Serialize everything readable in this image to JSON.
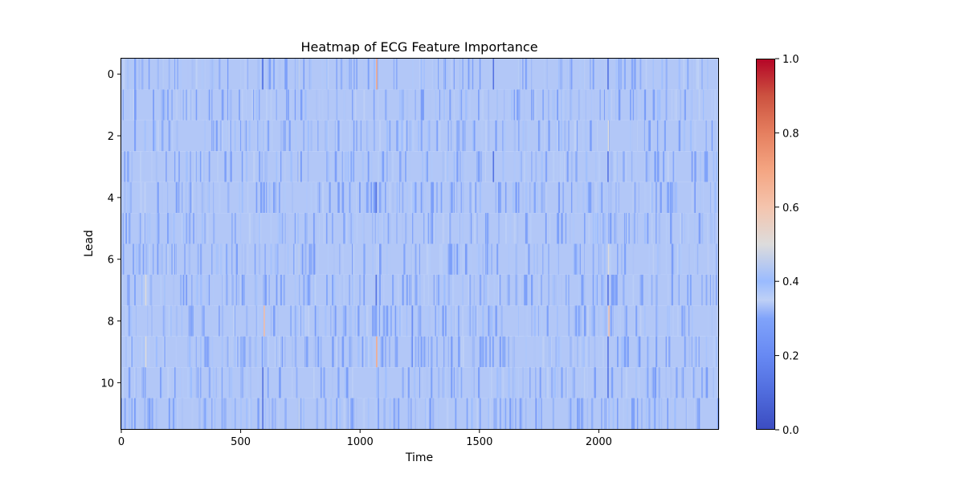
{
  "chart_data": {
    "type": "heatmap",
    "title": "Heatmap of ECG Feature Importance",
    "xlabel": "Time",
    "ylabel": "Lead",
    "xlim": [
      0,
      2500
    ],
    "ylim": [
      11.5,
      -0.5
    ],
    "x_ticks": [
      0,
      500,
      1000,
      1500,
      2000
    ],
    "y_ticks": [
      0,
      2,
      4,
      6,
      8,
      10
    ],
    "rows": 12,
    "columns": 2500,
    "colormap": "coolwarm",
    "colorbar": {
      "range": [
        0,
        1
      ],
      "ticks": [
        0.0,
        0.2,
        0.4,
        0.6,
        0.8,
        1.0
      ],
      "tick_labels": [
        "0.0",
        "0.2",
        "0.4",
        "0.6",
        "0.8",
        "1.0"
      ]
    },
    "baseline_value": 0.34,
    "notable_columns": [
      {
        "x": 100,
        "leads": [
          7,
          9
        ],
        "value": 0.5
      },
      {
        "x": 590,
        "leads": [
          0,
          10,
          11
        ],
        "value": 0.12
      },
      {
        "x": 596,
        "leads": [
          8
        ],
        "value": 0.62
      },
      {
        "x": 742,
        "leads": [
          0,
          3,
          6,
          11
        ],
        "value": 0.45
      },
      {
        "x": 1067,
        "leads": [
          0,
          9
        ],
        "value": 0.68
      },
      {
        "x": 1065,
        "leads": [
          4,
          7
        ],
        "value": 0.12
      },
      {
        "x": 1216,
        "leads": [
          8,
          9
        ],
        "value": 0.22
      },
      {
        "x": 1556,
        "leads": [
          0,
          3
        ],
        "value": 0.12
      },
      {
        "x": 2036,
        "leads": [
          0,
          3,
          7,
          9,
          10
        ],
        "value": 0.12
      },
      {
        "x": 2040,
        "leads": [
          8
        ],
        "value": 0.6
      },
      {
        "x": 2038,
        "leads": [
          2,
          6
        ],
        "value": 0.5
      }
    ]
  }
}
